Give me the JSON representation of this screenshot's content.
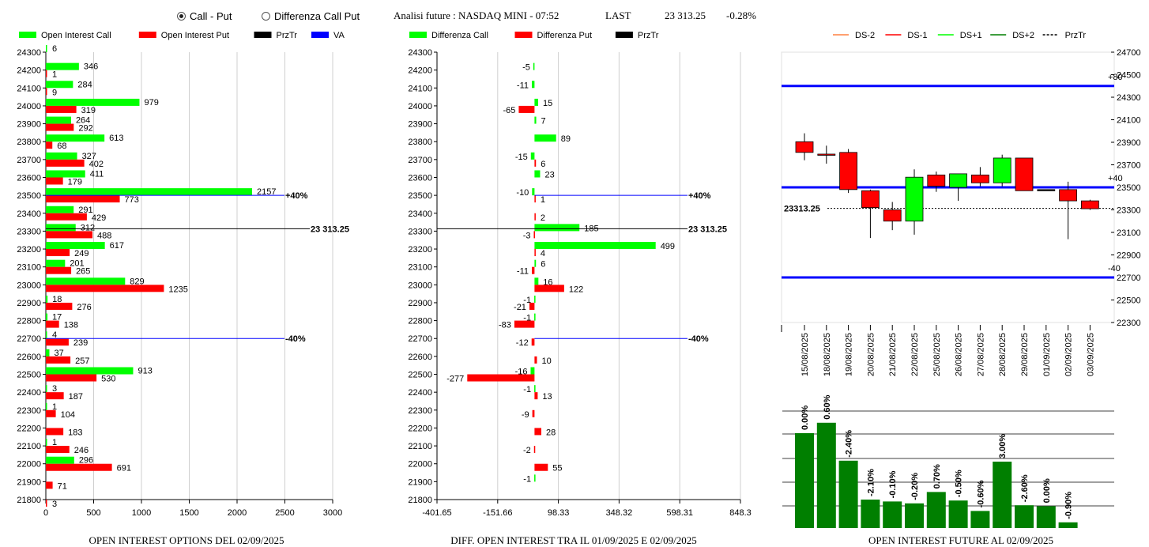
{
  "options": {
    "selected": "call_put",
    "call_put_label": "Call - Put",
    "diff_label": "Differenza Call Put"
  },
  "header": {
    "title": "Analisi future : NASDAQ MINI - 07:52",
    "last_label": "LAST",
    "last_value": "23 313.25",
    "change": "-0.28%"
  },
  "colors": {
    "call": "#00ff00",
    "put": "#ff0000",
    "prztr": "#000000",
    "va": "#0000ff",
    "dark_green": "#007f00",
    "ds_minus2": "#ff8040"
  },
  "strikes": [
    24300,
    24200,
    24100,
    24000,
    23900,
    23800,
    23700,
    23600,
    23500,
    23400,
    23300,
    23200,
    23100,
    23000,
    22900,
    22800,
    22700,
    22600,
    22500,
    22400,
    22300,
    22200,
    22100,
    22000,
    21900,
    21800
  ],
  "chart_data": [
    {
      "type": "bar",
      "orientation": "horizontal",
      "caption": "OPEN INTEREST OPTIONS DEL 02/09/2025",
      "legend": [
        "Open Interest Call",
        "Open Interest Put",
        "PrzTr",
        "VA"
      ],
      "call": [
        6,
        346,
        284,
        979,
        264,
        613,
        327,
        411,
        2157,
        291,
        312,
        617,
        201,
        829,
        18,
        17,
        4,
        37,
        913,
        3,
        1,
        null,
        1,
        296,
        null,
        null
      ],
      "put": [
        null,
        1,
        9,
        319,
        292,
        68,
        402,
        179,
        773,
        429,
        488,
        249,
        265,
        1235,
        276,
        138,
        239,
        257,
        530,
        187,
        104,
        183,
        246,
        691,
        71,
        3
      ],
      "xlim": [
        0,
        3000
      ],
      "xticks": [
        "0",
        "500",
        "1000",
        "1500",
        "2000",
        "2500",
        "3000"
      ],
      "price_line": {
        "value": 23313.25,
        "label": "23 313.25"
      },
      "va_lines": [
        {
          "strike": 23500,
          "label": "+40%"
        },
        {
          "strike": 22700,
          "label": "-40%"
        }
      ]
    },
    {
      "type": "bar",
      "orientation": "horizontal",
      "caption": "DIFF. OPEN INTEREST TRA IL 01/09/2025 E 02/09/2025",
      "legend": [
        "Differenza Call",
        "Differenza Put",
        "PrzTr"
      ],
      "call": [
        null,
        -5,
        -11,
        15,
        7,
        89,
        -15,
        23,
        -10,
        null,
        185,
        499,
        6,
        16,
        -1,
        -1,
        null,
        null,
        -16,
        -1,
        null,
        null,
        null,
        null,
        -1,
        null
      ],
      "put": [
        null,
        null,
        null,
        -65,
        null,
        null,
        6,
        null,
        1,
        2,
        -3,
        4,
        -11,
        122,
        -21,
        -83,
        -12,
        10,
        -277,
        13,
        -9,
        28,
        -2,
        55,
        null,
        null
      ],
      "xlim": [
        -401.65,
        848.3
      ],
      "xticks": [
        "-401.65",
        "-151.66",
        "98.33",
        "348.32",
        "598.31",
        "848.3"
      ],
      "price_line": {
        "value": 23313.25,
        "label": "23 313.25"
      },
      "va_lines": [
        {
          "strike": 23500,
          "label": "+40%"
        },
        {
          "strike": 22700,
          "label": "-40%"
        }
      ]
    },
    {
      "type": "candlestick",
      "legend": [
        "DS-2",
        "DS-1",
        "DS+1",
        "DS+2",
        "PrzTr"
      ],
      "dates": [
        "15/08/2025",
        "18/08/2025",
        "19/08/2025",
        "20/08/2025",
        "21/08/2025",
        "22/08/2025",
        "25/08/2025",
        "26/08/2025",
        "27/08/2025",
        "28/08/2025",
        "29/08/2025",
        "01/09/2025",
        "02/09/2025",
        "03/09/2025"
      ],
      "candles": [
        {
          "o": 23905,
          "h": 23980,
          "l": 23740,
          "c": 23810
        },
        {
          "o": 23795,
          "h": 23870,
          "l": 23710,
          "c": 23790
        },
        {
          "o": 23810,
          "h": 23840,
          "l": 23450,
          "c": 23480
        },
        {
          "o": 23470,
          "h": 23480,
          "l": 23050,
          "c": 23320
        },
        {
          "o": 23300,
          "h": 23370,
          "l": 23120,
          "c": 23200
        },
        {
          "o": 23200,
          "h": 23660,
          "l": 23080,
          "c": 23590
        },
        {
          "o": 23610,
          "h": 23640,
          "l": 23460,
          "c": 23510
        },
        {
          "o": 23500,
          "h": 23620,
          "l": 23380,
          "c": 23620
        },
        {
          "o": 23610,
          "h": 23680,
          "l": 23510,
          "c": 23540
        },
        {
          "o": 23540,
          "h": 23790,
          "l": 23510,
          "c": 23760
        },
        {
          "o": 23760,
          "h": 23760,
          "l": 23470,
          "c": 23470
        },
        {
          "o": 23480,
          "h": 23480,
          "l": 23480,
          "c": 23480
        },
        {
          "o": 23480,
          "h": 23550,
          "l": 23040,
          "c": 23380
        },
        {
          "o": 23380,
          "h": 23390,
          "l": 23300,
          "c": 23310
        }
      ],
      "ylim": [
        22300,
        24700
      ],
      "yticks": [
        "24700",
        "24500",
        "24300",
        "24100",
        "23900",
        "23700",
        "23500",
        "23300",
        "23100",
        "22900",
        "22700",
        "22500",
        "22300"
      ],
      "price_line": {
        "value": 23313.25,
        "label": "23313.25"
      },
      "levels": [
        {
          "value": 24400,
          "label": "+80"
        },
        {
          "value": 23500,
          "label": "+40"
        },
        {
          "value": 22700,
          "label": "-40"
        }
      ]
    },
    {
      "type": "bar",
      "caption": "OPEN INTEREST FUTURE AL 02/09/2025",
      "labels": [
        "0.00%",
        "0.60%",
        "-2.40%",
        "-2.10%",
        "-0.10%",
        "-0.20%",
        "0.70%",
        "-0.50%",
        "-0.60%",
        "3.00%",
        "-2.60%",
        "0.00%",
        "-0.90%"
      ],
      "values": [
        1.0,
        1.11,
        0.71,
        0.3,
        0.28,
        0.26,
        0.38,
        0.29,
        0.18,
        0.7,
        0.24,
        0.23,
        0.06
      ]
    }
  ]
}
